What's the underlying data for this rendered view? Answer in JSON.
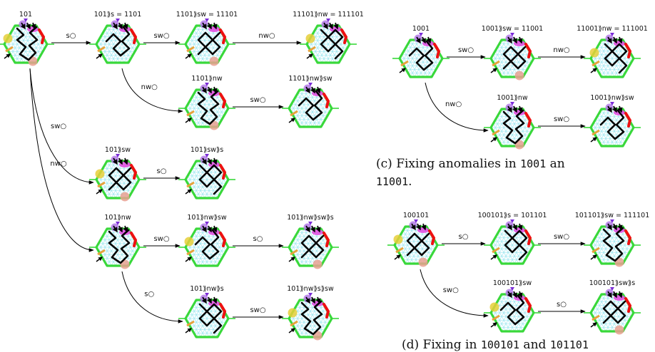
{
  "palette": {
    "grid": "#9fe7f0",
    "frame": "#39d83a",
    "path": "#000000",
    "purple": "#b37ae8",
    "magenta": "#e050e0",
    "red": "#ee1111",
    "orange": "#e8a23a",
    "salmon": "#e9a090",
    "yellow": "#e6cf3a"
  },
  "panel_a": {
    "nodes": [
      {
        "id": "a0",
        "label": "101"
      },
      {
        "id": "a1",
        "label": "101⟫s = 1101"
      },
      {
        "id": "a2",
        "label": "1101⟫sw = 11101"
      },
      {
        "id": "a3",
        "label": "11101⟫nw = 111101"
      },
      {
        "id": "a4",
        "label": "1101⟫nw"
      },
      {
        "id": "a5",
        "label": "1101⟫nw⟫sw"
      },
      {
        "id": "a6",
        "label": "101⟫sw"
      },
      {
        "id": "a7",
        "label": "101⟫sw⟫s"
      },
      {
        "id": "a8",
        "label": "101⟫nw"
      },
      {
        "id": "a9",
        "label": "101⟫nw⟫sw"
      },
      {
        "id": "a10",
        "label": "101⟫nw⟫sw⟫s"
      },
      {
        "id": "a11",
        "label": "101⟫nw⟫s"
      },
      {
        "id": "a12",
        "label": "101⟫nw⟫s⟫sw"
      }
    ],
    "edges": [
      {
        "from": "a0",
        "to": "a1",
        "label": "s○"
      },
      {
        "from": "a1",
        "to": "a2",
        "label": "sw○"
      },
      {
        "from": "a2",
        "to": "a3",
        "label": "nw○"
      },
      {
        "from": "a1",
        "to": "a4",
        "label": "nw○"
      },
      {
        "from": "a4",
        "to": "a5",
        "label": "sw○"
      },
      {
        "from": "a0",
        "to": "a6",
        "label": "sw○"
      },
      {
        "from": "a6",
        "to": "a7",
        "label": "s○"
      },
      {
        "from": "a0",
        "to": "a8",
        "label": "nw○"
      },
      {
        "from": "a8",
        "to": "a9",
        "label": "sw○"
      },
      {
        "from": "a9",
        "to": "a10",
        "label": "s○"
      },
      {
        "from": "a8",
        "to": "a11",
        "label": "s○"
      },
      {
        "from": "a11",
        "to": "a12",
        "label": "sw○"
      }
    ]
  },
  "panel_c": {
    "nodes": [
      {
        "id": "c0",
        "label": "1001"
      },
      {
        "id": "c1",
        "label": "1001⟫sw = 11001"
      },
      {
        "id": "c2",
        "label": "11001⟫nw = 111001"
      },
      {
        "id": "c3",
        "label": "1001⟫nw"
      },
      {
        "id": "c4",
        "label": "1001⟫nw⟫sw"
      }
    ],
    "edges": [
      {
        "from": "c0",
        "to": "c1",
        "label": "sw○"
      },
      {
        "from": "c1",
        "to": "c2",
        "label": "nw○"
      },
      {
        "from": "c0",
        "to": "c3",
        "label": "nw○"
      },
      {
        "from": "c3",
        "to": "c4",
        "label": "sw○"
      }
    ],
    "caption": {
      "prefix": "(c) Fixing anomalies in ",
      "code1": "1001",
      "middle": " an",
      "code2": "11001",
      "suffix": "."
    }
  },
  "panel_d": {
    "nodes": [
      {
        "id": "d0",
        "label": "100101"
      },
      {
        "id": "d1",
        "label": "100101⟫s = 101101"
      },
      {
        "id": "d2",
        "label": "101101⟫sw = 111101"
      },
      {
        "id": "d3",
        "label": "100101⟫sw"
      },
      {
        "id": "d4",
        "label": "100101⟫sw⟫s"
      }
    ],
    "edges": [
      {
        "from": "d0",
        "to": "d1",
        "label": "s○"
      },
      {
        "from": "d1",
        "to": "d2",
        "label": "sw○"
      },
      {
        "from": "d0",
        "to": "d3",
        "label": "sw○"
      },
      {
        "from": "d3",
        "to": "d4",
        "label": "s○"
      }
    ],
    "caption": {
      "prefix": "(d) Fixing in ",
      "code1": "100101",
      "middle": " and ",
      "code2": "101101"
    }
  }
}
